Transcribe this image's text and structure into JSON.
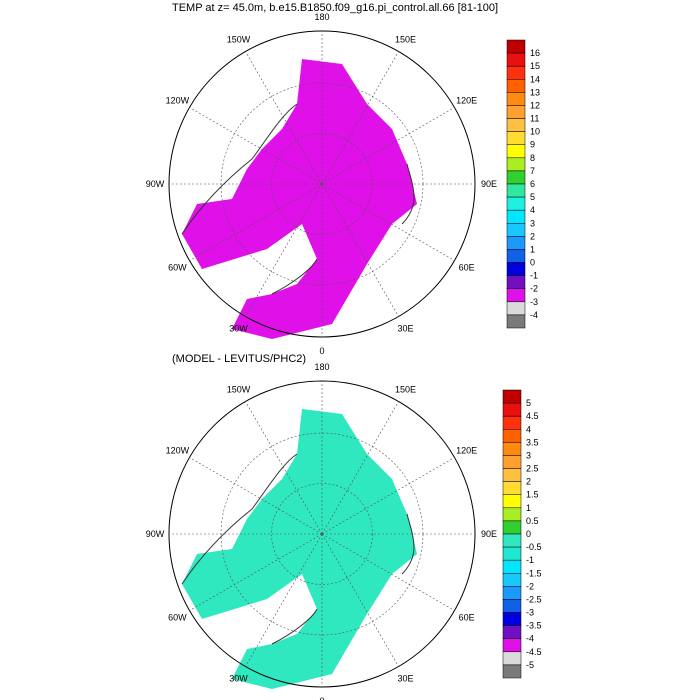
{
  "panels": [
    {
      "title": "TEMP at z=  45.0m, b.e15.B1850.f09_g16.pi_control.all.66 [81-100]",
      "colorbar": {
        "labels": [
          "16",
          "15",
          "14",
          "13",
          "12",
          "11",
          "10",
          "9",
          "8",
          "7",
          "6",
          "5",
          "4",
          "3",
          "2",
          "1",
          "0",
          "-1",
          "-2",
          "-3",
          "-4"
        ],
        "colors": [
          "#c00000",
          "#e81010",
          "#ff3010",
          "#ff6000",
          "#ff8a10",
          "#ffa030",
          "#ffc040",
          "#ffdd30",
          "#ffff00",
          "#aaee22",
          "#30d030",
          "#30e8a0",
          "#20f0e0",
          "#00e6ff",
          "#18c8ff",
          "#1a9aff",
          "#1060e8",
          "#0000e0",
          "#7010c0",
          "#e010e8",
          "#dadada",
          "#7a7a7a"
        ]
      },
      "map_fill": "#e010e8",
      "map_fill_name": "main-field"
    },
    {
      "title": "(MODEL - LEVITUS/PHC2)",
      "colorbar": {
        "labels": [
          "5",
          "4.5",
          "4",
          "3.5",
          "3",
          "2.5",
          "2",
          "1.5",
          "1",
          "0.5",
          "0",
          "-0.5",
          "-1",
          "-1.5",
          "-2",
          "-2.5",
          "-3",
          "-3.5",
          "-4",
          "-4.5",
          "-5"
        ],
        "colors": [
          "#c00000",
          "#e81010",
          "#ff3010",
          "#ff6000",
          "#ff8a10",
          "#ffa030",
          "#ffc040",
          "#ffdd30",
          "#ffff00",
          "#aaee22",
          "#30d030",
          "#30e8c0",
          "#20e8d0",
          "#00e6ff",
          "#18c8ff",
          "#1a9aff",
          "#1060e8",
          "#0000e0",
          "#7010c0",
          "#e010e8",
          "#dadada",
          "#7a7a7a"
        ]
      },
      "map_fill": "#30e8c0",
      "map_fill_name": "main-field"
    }
  ],
  "longitude_labels": [
    "180",
    "150E",
    "120E",
    "90E",
    "60E",
    "30E",
    "0",
    "30W",
    "60W",
    "90W",
    "120W",
    "150W"
  ]
}
